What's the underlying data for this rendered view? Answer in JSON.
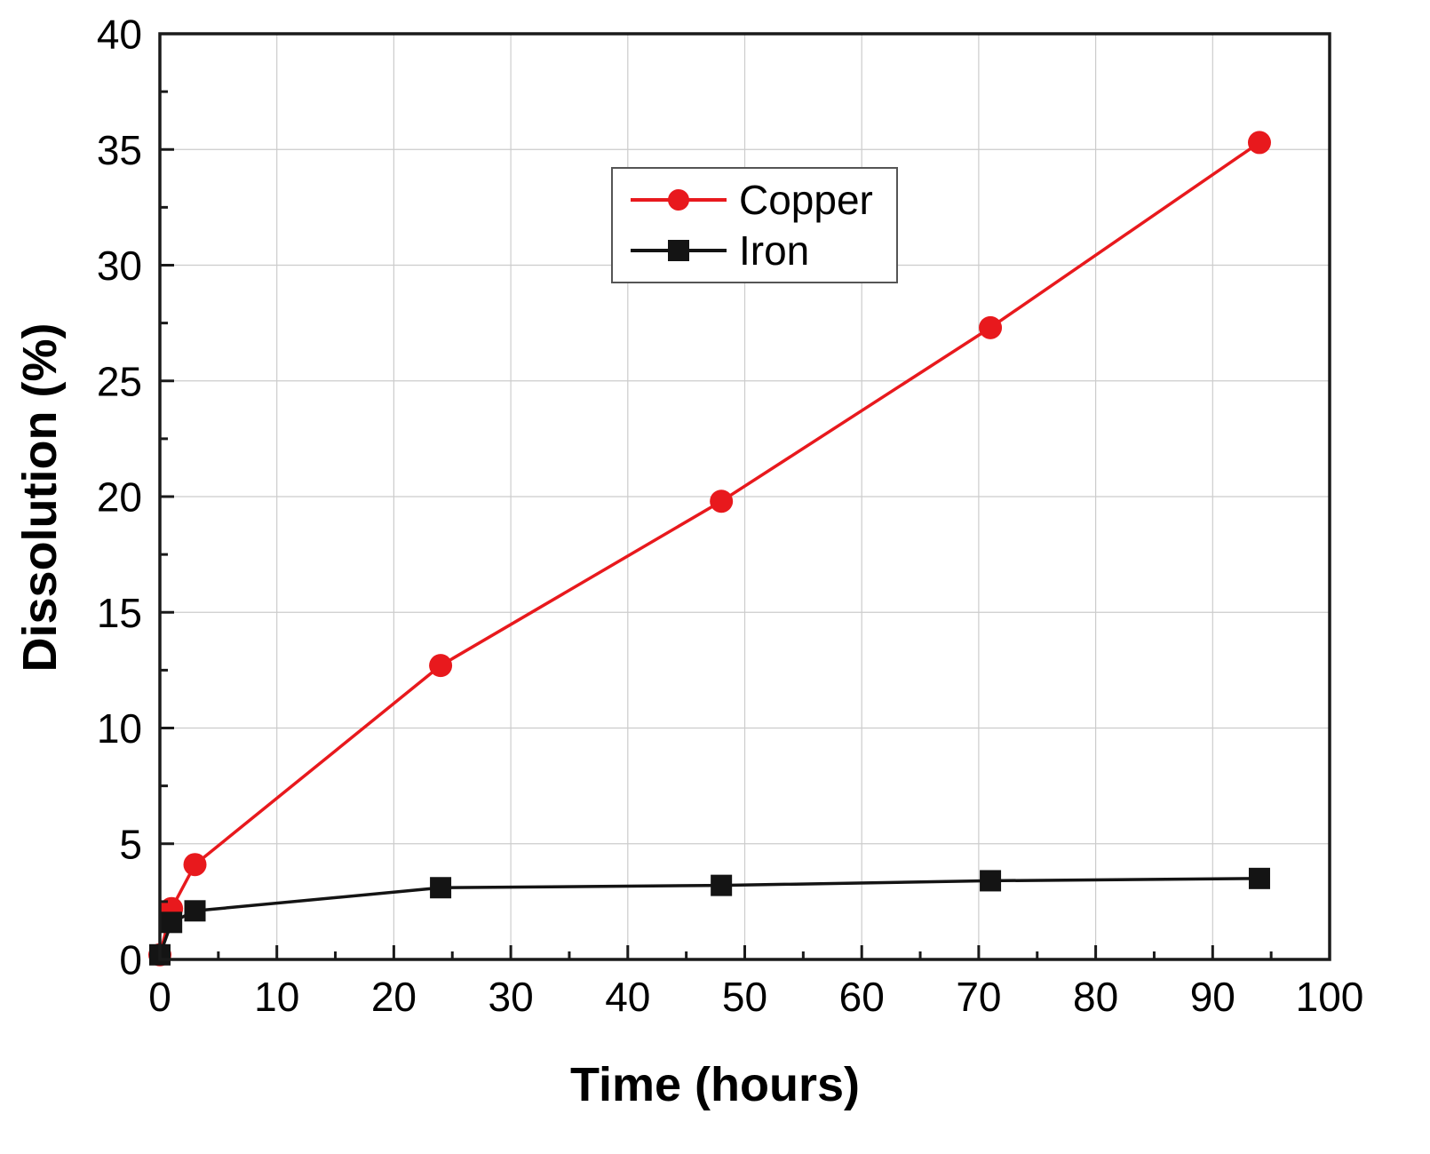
{
  "chart_data": {
    "type": "line",
    "title": "",
    "xlabel": "Time (hours)",
    "ylabel": "Dissolution (%)",
    "xlim": [
      0,
      100
    ],
    "ylim": [
      0,
      40
    ],
    "xticks": [
      0,
      10,
      20,
      30,
      40,
      50,
      60,
      70,
      80,
      90,
      100
    ],
    "yticks": [
      0,
      5,
      10,
      15,
      20,
      25,
      30,
      35,
      40
    ],
    "grid": true,
    "grid_color": "#cccccc",
    "axis_color": "#1a1a1a",
    "legend_position": "top-center",
    "series": [
      {
        "name": "Copper",
        "color": "#e8191d",
        "marker": "circle",
        "x": [
          0,
          1,
          3,
          24,
          48,
          71,
          94
        ],
        "y": [
          0.2,
          2.2,
          4.1,
          12.7,
          19.8,
          27.3,
          35.3
        ]
      },
      {
        "name": "Iron",
        "color": "#141414",
        "marker": "square",
        "x": [
          0,
          1,
          3,
          24,
          48,
          71,
          94
        ],
        "y": [
          0.2,
          1.6,
          2.1,
          3.1,
          3.2,
          3.4,
          3.5
        ]
      }
    ]
  }
}
